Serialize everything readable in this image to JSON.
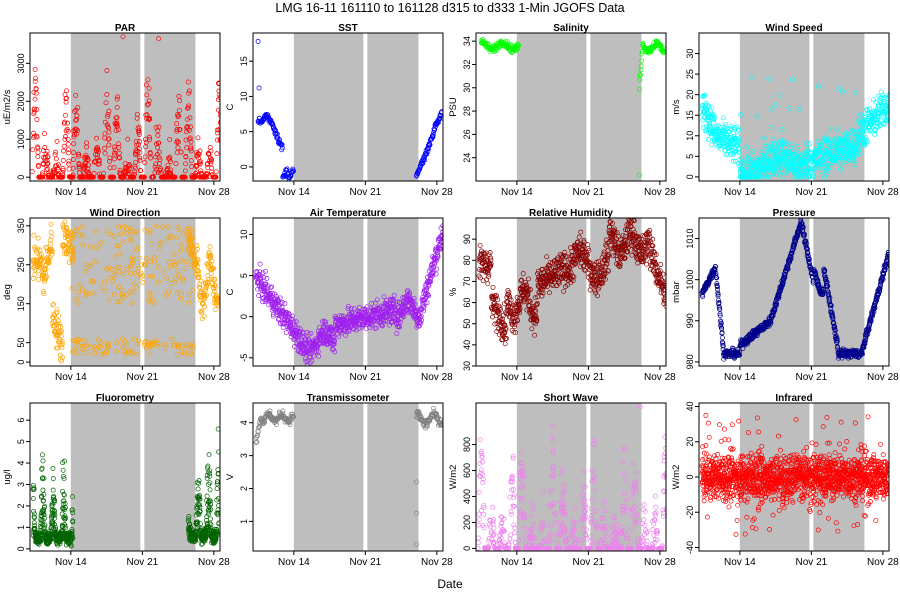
{
  "title": "LMG   16-11     161110 to 161128     d315 to d333   1-Min  JGOFS Data",
  "xlabel": "Date",
  "chart_data": {
    "type": "scatter",
    "shared_x_range": [
      "2016-11-10",
      "2016-11-28"
    ],
    "x_ticks": [
      "Nov 14",
      "Nov 21",
      "Nov 28"
    ],
    "gap_shading": [
      {
        "from": "2016-11-14",
        "to": "2016-11-21",
        "fill": "#bebebe"
      },
      {
        "from": "2016-11-21",
        "to": "2016-11-26",
        "fill": "#bebebe"
      }
    ],
    "panels": [
      {
        "name": "par",
        "title": "PAR",
        "ylabel": "uE/m2/s",
        "color": "#ff0000",
        "ylim": [
          -100,
          3800
        ],
        "yticks": [
          0,
          1000,
          2000,
          3000
        ],
        "pattern": "diurnal",
        "base": 0,
        "amp": 2600,
        "noise": 300,
        "spikes": [
          {
            "x": 9.1,
            "y": 3700
          },
          {
            "x": 12.6,
            "y": 3650
          }
        ]
      },
      {
        "name": "sst",
        "title": "SST",
        "ylabel": "C",
        "color": "#0000ff",
        "ylim": [
          -2,
          19
        ],
        "yticks": [
          0,
          5,
          10,
          15
        ],
        "pattern": "sst",
        "outliers": [
          {
            "x": 0.5,
            "y": 17.8
          },
          {
            "x": 0.6,
            "y": 11.2
          }
        ]
      },
      {
        "name": "salinity",
        "title": "Salinity",
        "ylabel": "PSU",
        "color": "#00ff00",
        "ylim": [
          22,
          34.7
        ],
        "yticks": [
          24,
          26,
          28,
          30,
          32,
          34
        ],
        "pattern": "salinity",
        "outliers": [
          {
            "x": 16.0,
            "y": 22.5
          }
        ]
      },
      {
        "name": "wind_speed",
        "title": "Wind Speed",
        "ylabel": "m/s",
        "color": "#00ffff",
        "ylim": [
          -1,
          35
        ],
        "yticks": [
          0,
          5,
          10,
          15,
          20,
          25,
          30
        ],
        "pattern": "wind"
      },
      {
        "name": "wind_direction",
        "title": "Wind Direction",
        "ylabel": "deg",
        "color": "#ffa500",
        "ylim": [
          -10,
          370
        ],
        "yticks": [
          0,
          50,
          150,
          250,
          350
        ],
        "pattern": "winddir"
      },
      {
        "name": "air_temperature",
        "title": "Air Temperature",
        "ylabel": "C",
        "color": "#a020f0",
        "ylim": [
          -6,
          12
        ],
        "yticks": [
          -5,
          0,
          5,
          10
        ],
        "pattern": "airtemp"
      },
      {
        "name": "relative_humidity",
        "title": "Relative Humidity",
        "ylabel": "%",
        "color": "#8b0000",
        "ylim": [
          30,
          100
        ],
        "yticks": [
          30,
          40,
          50,
          60,
          70,
          80,
          90
        ],
        "pattern": "rh"
      },
      {
        "name": "pressure",
        "title": "Pressure",
        "ylabel": "mbar",
        "color": "#00008b",
        "ylim": [
          979,
          1015
        ],
        "yticks": [
          980,
          990,
          1000,
          1010
        ],
        "pattern": "pressure"
      },
      {
        "name": "fluorometry",
        "title": "Fluorometry",
        "ylabel": "ug/l",
        "color": "#006400",
        "ylim": [
          -0.1,
          6.8
        ],
        "yticks": [
          0,
          1,
          2,
          3,
          4,
          5,
          6
        ],
        "pattern": "fluor"
      },
      {
        "name": "transmissometer",
        "title": "Transmissometer",
        "ylabel": "V",
        "color": "#808080",
        "ylim": [
          0.1,
          4.6
        ],
        "yticks": [
          1,
          2,
          3,
          4
        ],
        "pattern": "trans",
        "outliers": [
          {
            "x": 16.0,
            "y": 0.3
          },
          {
            "x": 16.0,
            "y": 1.25
          },
          {
            "x": 16.0,
            "y": 2.2
          }
        ]
      },
      {
        "name": "short_wave",
        "title": "Short Wave",
        "ylabel": "W/m2",
        "color": "#ee82ee",
        "ylim": [
          -20,
          1120
        ],
        "yticks": [
          0,
          200,
          400,
          600,
          800
        ],
        "pattern": "diurnal",
        "base": 0,
        "amp": 800,
        "noise": 120,
        "spikes": [
          {
            "x": 16.1,
            "y": 1090
          }
        ]
      },
      {
        "name": "infrared",
        "title": "Infrared",
        "ylabel": "W/m2",
        "color": "#ff0000",
        "ylim": [
          -42,
          42
        ],
        "yticks": [
          -40,
          -20,
          0,
          20,
          40
        ],
        "pattern": "infrared"
      }
    ]
  }
}
